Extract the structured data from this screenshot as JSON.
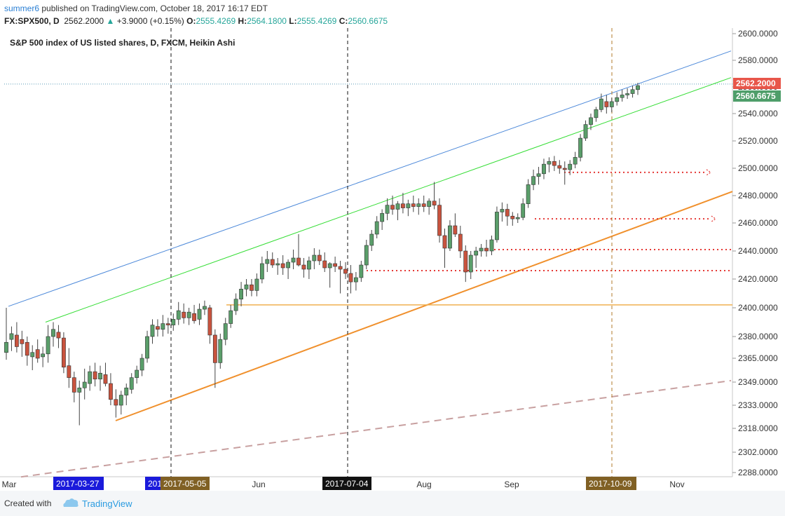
{
  "header": {
    "user": "summer6",
    "published": "published on TradingView.com, October 18, 2017 16:17 EDT",
    "symbol": "FX:SPX500, D",
    "last": "2562.2000",
    "change_arrow": "▲",
    "change": "+3.9000 (+0.15%)",
    "o_label": "O:",
    "o": "2555.4269",
    "h_label": "H:",
    "h": "2564.1800",
    "l_label": "L:",
    "l": "2555.4269",
    "c_label": "C:",
    "c": "2560.6675"
  },
  "footer": {
    "created_with": "Created with",
    "brand": "TradingView"
  },
  "chart_data": {
    "type": "candlestick",
    "title": "S&P 500 index of US listed shares, D, FXCM, Heikin Ashi",
    "y_axis": {
      "ticks": [
        "2600.0000",
        "2580.0000",
        "2560.0000",
        "2540.0000",
        "2520.0000",
        "2500.0000",
        "2480.0000",
        "2460.0000",
        "2440.0000",
        "2420.0000",
        "2400.0000",
        "2380.0000",
        "2365.0000",
        "2349.0000",
        "2333.0000",
        "2318.0000",
        "2302.0000",
        "2288.0000"
      ],
      "tick_values": [
        2600,
        2580,
        2560,
        2540,
        2520,
        2500,
        2480,
        2460,
        2440,
        2420,
        2400,
        2380,
        2365,
        2349,
        2333,
        2318,
        2302,
        2288
      ],
      "scale": "log"
    },
    "x_axis": {
      "months": [
        "Mar",
        "Jun",
        "Aug",
        "Sep",
        "Nov"
      ],
      "date_labels": [
        {
          "text": "2017-03-27",
          "color": "#1a1adb"
        },
        {
          "text": "201",
          "color": "#1a1adb"
        },
        {
          "text": "2017-05-05",
          "color": "#806024"
        },
        {
          "text": "2017-07-04",
          "color": "#111111"
        },
        {
          "text": "2017-10-09",
          "color": "#806024"
        }
      ]
    },
    "price_labels": [
      {
        "text": "2562.2000",
        "value": 2562.2,
        "color": "#e8564a"
      },
      {
        "text": "2560.6675",
        "value": 2560.6675,
        "color": "#4f9e6a"
      }
    ],
    "candles": [
      {
        "o": 2369,
        "h": 2400,
        "l": 2364,
        "c": 2376
      },
      {
        "o": 2378,
        "h": 2387,
        "l": 2370,
        "c": 2382
      },
      {
        "o": 2381,
        "h": 2390,
        "l": 2369,
        "c": 2373
      },
      {
        "o": 2378,
        "h": 2384,
        "l": 2366,
        "c": 2375
      },
      {
        "o": 2376,
        "h": 2380,
        "l": 2360,
        "c": 2367
      },
      {
        "o": 2366,
        "h": 2374,
        "l": 2357,
        "c": 2369
      },
      {
        "o": 2371,
        "h": 2378,
        "l": 2362,
        "c": 2365
      },
      {
        "o": 2366,
        "h": 2373,
        "l": 2359,
        "c": 2368
      },
      {
        "o": 2368,
        "h": 2388,
        "l": 2362,
        "c": 2380
      },
      {
        "o": 2380,
        "h": 2390,
        "l": 2373,
        "c": 2385
      },
      {
        "o": 2383,
        "h": 2388,
        "l": 2372,
        "c": 2379
      },
      {
        "o": 2379,
        "h": 2383,
        "l": 2355,
        "c": 2359
      },
      {
        "o": 2360,
        "h": 2372,
        "l": 2345,
        "c": 2352
      },
      {
        "o": 2352,
        "h": 2356,
        "l": 2335,
        "c": 2342
      },
      {
        "o": 2342,
        "h": 2350,
        "l": 2320,
        "c": 2345
      },
      {
        "o": 2345,
        "h": 2358,
        "l": 2337,
        "c": 2349
      },
      {
        "o": 2348,
        "h": 2360,
        "l": 2343,
        "c": 2356
      },
      {
        "o": 2356,
        "h": 2362,
        "l": 2346,
        "c": 2351
      },
      {
        "o": 2351,
        "h": 2360,
        "l": 2343,
        "c": 2355
      },
      {
        "o": 2354,
        "h": 2362,
        "l": 2346,
        "c": 2348
      },
      {
        "o": 2348,
        "h": 2355,
        "l": 2333,
        "c": 2337
      },
      {
        "o": 2337,
        "h": 2344,
        "l": 2325,
        "c": 2333
      },
      {
        "o": 2333,
        "h": 2343,
        "l": 2327,
        "c": 2340
      },
      {
        "o": 2340,
        "h": 2348,
        "l": 2333,
        "c": 2345
      },
      {
        "o": 2344,
        "h": 2355,
        "l": 2341,
        "c": 2352
      },
      {
        "o": 2352,
        "h": 2360,
        "l": 2348,
        "c": 2357
      },
      {
        "o": 2357,
        "h": 2368,
        "l": 2353,
        "c": 2365
      },
      {
        "o": 2365,
        "h": 2384,
        "l": 2362,
        "c": 2380
      },
      {
        "o": 2380,
        "h": 2392,
        "l": 2375,
        "c": 2388
      },
      {
        "o": 2387,
        "h": 2392,
        "l": 2380,
        "c": 2385
      },
      {
        "o": 2385,
        "h": 2395,
        "l": 2380,
        "c": 2389
      },
      {
        "o": 2389,
        "h": 2393,
        "l": 2382,
        "c": 2388
      },
      {
        "o": 2388,
        "h": 2396,
        "l": 2384,
        "c": 2392
      },
      {
        "o": 2392,
        "h": 2404,
        "l": 2388,
        "c": 2398
      },
      {
        "o": 2397,
        "h": 2403,
        "l": 2389,
        "c": 2393
      },
      {
        "o": 2393,
        "h": 2400,
        "l": 2388,
        "c": 2397
      },
      {
        "o": 2396,
        "h": 2402,
        "l": 2389,
        "c": 2391
      },
      {
        "o": 2392,
        "h": 2403,
        "l": 2388,
        "c": 2399
      },
      {
        "o": 2399,
        "h": 2405,
        "l": 2395,
        "c": 2401
      },
      {
        "o": 2400,
        "h": 2402,
        "l": 2375,
        "c": 2381
      },
      {
        "o": 2381,
        "h": 2385,
        "l": 2345,
        "c": 2362
      },
      {
        "o": 2362,
        "h": 2382,
        "l": 2358,
        "c": 2378
      },
      {
        "o": 2378,
        "h": 2393,
        "l": 2374,
        "c": 2389
      },
      {
        "o": 2389,
        "h": 2402,
        "l": 2386,
        "c": 2398
      },
      {
        "o": 2398,
        "h": 2410,
        "l": 2395,
        "c": 2406
      },
      {
        "o": 2406,
        "h": 2418,
        "l": 2401,
        "c": 2413
      },
      {
        "o": 2413,
        "h": 2420,
        "l": 2408,
        "c": 2416
      },
      {
        "o": 2416,
        "h": 2420,
        "l": 2408,
        "c": 2412
      },
      {
        "o": 2412,
        "h": 2424,
        "l": 2408,
        "c": 2420
      },
      {
        "o": 2420,
        "h": 2436,
        "l": 2417,
        "c": 2431
      },
      {
        "o": 2431,
        "h": 2440,
        "l": 2425,
        "c": 2434
      },
      {
        "o": 2434,
        "h": 2439,
        "l": 2428,
        "c": 2430
      },
      {
        "o": 2430,
        "h": 2435,
        "l": 2423,
        "c": 2431
      },
      {
        "o": 2431,
        "h": 2437,
        "l": 2423,
        "c": 2428
      },
      {
        "o": 2428,
        "h": 2434,
        "l": 2420,
        "c": 2432
      },
      {
        "o": 2432,
        "h": 2441,
        "l": 2427,
        "c": 2435
      },
      {
        "o": 2435,
        "h": 2452,
        "l": 2429,
        "c": 2430
      },
      {
        "o": 2430,
        "h": 2435,
        "l": 2421,
        "c": 2427
      },
      {
        "o": 2427,
        "h": 2436,
        "l": 2420,
        "c": 2433
      },
      {
        "o": 2433,
        "h": 2442,
        "l": 2427,
        "c": 2437
      },
      {
        "o": 2437,
        "h": 2441,
        "l": 2430,
        "c": 2433
      },
      {
        "o": 2433,
        "h": 2439,
        "l": 2425,
        "c": 2428
      },
      {
        "o": 2428,
        "h": 2432,
        "l": 2414,
        "c": 2431
      },
      {
        "o": 2431,
        "h": 2436,
        "l": 2425,
        "c": 2429
      },
      {
        "o": 2429,
        "h": 2433,
        "l": 2410,
        "c": 2427
      },
      {
        "o": 2427,
        "h": 2432,
        "l": 2420,
        "c": 2424
      },
      {
        "o": 2424,
        "h": 2430,
        "l": 2410,
        "c": 2418
      },
      {
        "o": 2418,
        "h": 2425,
        "l": 2412,
        "c": 2421
      },
      {
        "o": 2421,
        "h": 2433,
        "l": 2418,
        "c": 2430
      },
      {
        "o": 2430,
        "h": 2448,
        "l": 2427,
        "c": 2444
      },
      {
        "o": 2444,
        "h": 2455,
        "l": 2440,
        "c": 2452
      },
      {
        "o": 2452,
        "h": 2465,
        "l": 2449,
        "c": 2461
      },
      {
        "o": 2461,
        "h": 2470,
        "l": 2455,
        "c": 2467
      },
      {
        "o": 2467,
        "h": 2478,
        "l": 2462,
        "c": 2473
      },
      {
        "o": 2473,
        "h": 2480,
        "l": 2466,
        "c": 2470
      },
      {
        "o": 2470,
        "h": 2476,
        "l": 2462,
        "c": 2474
      },
      {
        "o": 2474,
        "h": 2482,
        "l": 2467,
        "c": 2471
      },
      {
        "o": 2471,
        "h": 2477,
        "l": 2465,
        "c": 2474
      },
      {
        "o": 2474,
        "h": 2480,
        "l": 2468,
        "c": 2472
      },
      {
        "o": 2472,
        "h": 2478,
        "l": 2466,
        "c": 2474
      },
      {
        "o": 2474,
        "h": 2480,
        "l": 2468,
        "c": 2472
      },
      {
        "o": 2472,
        "h": 2478,
        "l": 2466,
        "c": 2476
      },
      {
        "o": 2476,
        "h": 2490,
        "l": 2470,
        "c": 2473
      },
      {
        "o": 2473,
        "h": 2478,
        "l": 2446,
        "c": 2451
      },
      {
        "o": 2451,
        "h": 2456,
        "l": 2428,
        "c": 2442
      },
      {
        "o": 2442,
        "h": 2462,
        "l": 2440,
        "c": 2458
      },
      {
        "o": 2458,
        "h": 2467,
        "l": 2450,
        "c": 2452
      },
      {
        "o": 2452,
        "h": 2458,
        "l": 2435,
        "c": 2440
      },
      {
        "o": 2440,
        "h": 2444,
        "l": 2418,
        "c": 2425
      },
      {
        "o": 2425,
        "h": 2440,
        "l": 2420,
        "c": 2437
      },
      {
        "o": 2437,
        "h": 2443,
        "l": 2428,
        "c": 2440
      },
      {
        "o": 2440,
        "h": 2445,
        "l": 2436,
        "c": 2442
      },
      {
        "o": 2442,
        "h": 2448,
        "l": 2436,
        "c": 2440
      },
      {
        "o": 2440,
        "h": 2451,
        "l": 2437,
        "c": 2448
      },
      {
        "o": 2448,
        "h": 2472,
        "l": 2446,
        "c": 2468
      },
      {
        "o": 2468,
        "h": 2475,
        "l": 2461,
        "c": 2470
      },
      {
        "o": 2470,
        "h": 2474,
        "l": 2458,
        "c": 2465
      },
      {
        "o": 2465,
        "h": 2468,
        "l": 2458,
        "c": 2463
      },
      {
        "o": 2463,
        "h": 2467,
        "l": 2460,
        "c": 2464
      },
      {
        "o": 2464,
        "h": 2478,
        "l": 2462,
        "c": 2474
      },
      {
        "o": 2474,
        "h": 2492,
        "l": 2471,
        "c": 2488
      },
      {
        "o": 2488,
        "h": 2499,
        "l": 2484,
        "c": 2494
      },
      {
        "o": 2494,
        "h": 2501,
        "l": 2488,
        "c": 2496
      },
      {
        "o": 2496,
        "h": 2507,
        "l": 2492,
        "c": 2503
      },
      {
        "o": 2503,
        "h": 2508,
        "l": 2497,
        "c": 2505
      },
      {
        "o": 2505,
        "h": 2509,
        "l": 2498,
        "c": 2502
      },
      {
        "o": 2502,
        "h": 2506,
        "l": 2496,
        "c": 2500
      },
      {
        "o": 2500,
        "h": 2505,
        "l": 2488,
        "c": 2499
      },
      {
        "o": 2499,
        "h": 2506,
        "l": 2495,
        "c": 2503
      },
      {
        "o": 2503,
        "h": 2512,
        "l": 2500,
        "c": 2508
      },
      {
        "o": 2508,
        "h": 2525,
        "l": 2505,
        "c": 2522
      },
      {
        "o": 2522,
        "h": 2535,
        "l": 2520,
        "c": 2532
      },
      {
        "o": 2532,
        "h": 2540,
        "l": 2528,
        "c": 2537
      },
      {
        "o": 2537,
        "h": 2545,
        "l": 2534,
        "c": 2543
      },
      {
        "o": 2543,
        "h": 2555,
        "l": 2541,
        "c": 2551
      },
      {
        "o": 2549,
        "h": 2554,
        "l": 2540,
        "c": 2545
      },
      {
        "o": 2545,
        "h": 2552,
        "l": 2541,
        "c": 2549
      },
      {
        "o": 2549,
        "h": 2556,
        "l": 2546,
        "c": 2552
      },
      {
        "o": 2552,
        "h": 2558,
        "l": 2549,
        "c": 2554
      },
      {
        "o": 2554,
        "h": 2559,
        "l": 2551,
        "c": 2555
      },
      {
        "o": 2555,
        "h": 2561,
        "l": 2552,
        "c": 2558
      },
      {
        "o": 2558,
        "h": 2563,
        "l": 2554,
        "c": 2561
      }
    ],
    "vertical_markers": [
      "2017-03-27",
      "2017-05-05",
      "2017-07-04",
      "2017-10-09"
    ],
    "horizontal_levels": [
      2497,
      2463,
      2441,
      2426,
      2402
    ],
    "trendlines": [
      {
        "name": "upper channel",
        "color": "#4a87d9"
      },
      {
        "name": "middle channel",
        "color": "#33dd33"
      },
      {
        "name": "lower channel",
        "color": "#f0902c"
      },
      {
        "name": "long-term support",
        "color": "#c8a0a0"
      }
    ]
  }
}
